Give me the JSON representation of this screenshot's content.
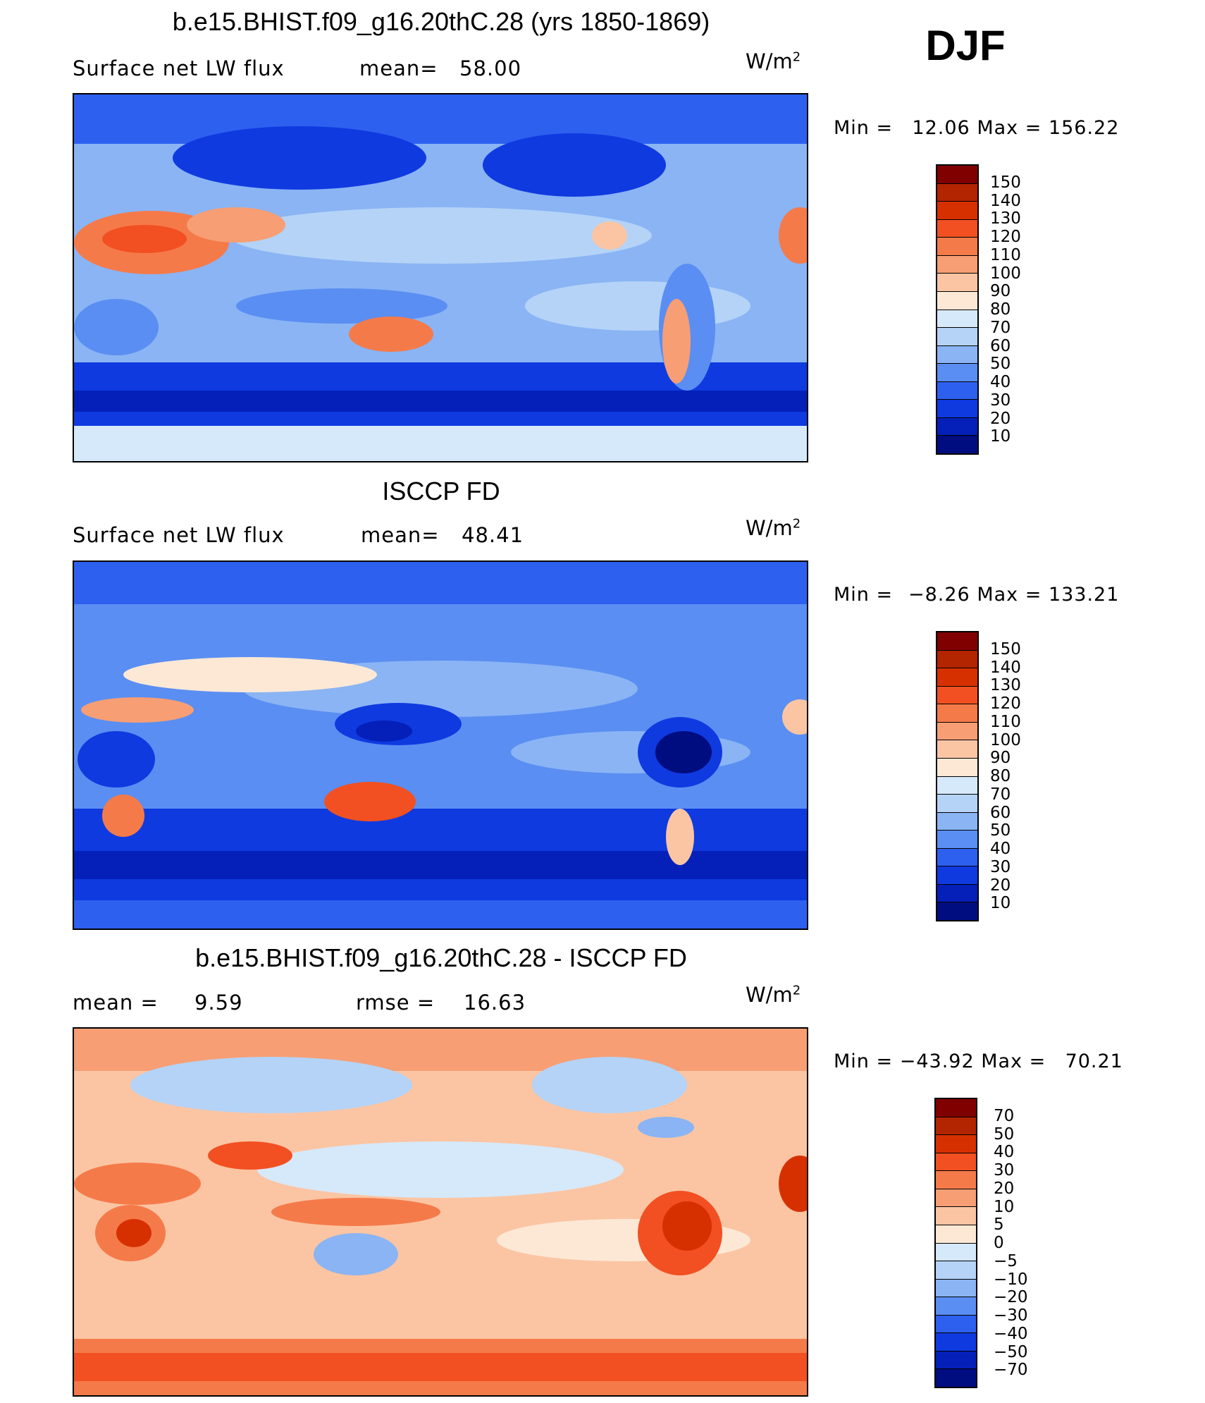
{
  "season": "DJF",
  "panels": [
    {
      "title": "b.e15.BHIST.f09_g16.20thC.28 (yrs 1850-1869)",
      "left_label": "Surface net LW flux",
      "mid_label": "mean=",
      "mid_value": "58.00",
      "units_base": "W/m",
      "units_exp": "2",
      "min_label": "Min =",
      "min_value": "12.06",
      "max_label": "Max =",
      "max_value": "156.22",
      "colorbar": {
        "labels": [
          "150",
          "140",
          "130",
          "120",
          "110",
          "100",
          "90",
          "80",
          "70",
          "60",
          "50",
          "40",
          "30",
          "20",
          "10"
        ],
        "colors": [
          "#800000",
          "#b32400",
          "#d73000",
          "#f25022",
          "#f57a4a",
          "#f79e74",
          "#fbc5a3",
          "#fde8d6",
          "#d6e9fb",
          "#b4d3f7",
          "#8ab4f4",
          "#5a8ef2",
          "#2e60f0",
          "#0f3ae0",
          "#0420b8",
          "#000d80"
        ]
      }
    },
    {
      "title": "ISCCP FD",
      "left_label": "Surface net LW flux",
      "mid_label": "mean=",
      "mid_value": "48.41",
      "units_base": "W/m",
      "units_exp": "2",
      "min_label": "Min =",
      "min_value": "−8.26",
      "max_label": "Max =",
      "max_value": "133.21",
      "colorbar": {
        "labels": [
          "150",
          "140",
          "130",
          "120",
          "110",
          "100",
          "90",
          "80",
          "70",
          "60",
          "50",
          "40",
          "30",
          "20",
          "10"
        ],
        "colors": [
          "#800000",
          "#b32400",
          "#d73000",
          "#f25022",
          "#f57a4a",
          "#f79e74",
          "#fbc5a3",
          "#fde8d6",
          "#d6e9fb",
          "#b4d3f7",
          "#8ab4f4",
          "#5a8ef2",
          "#2e60f0",
          "#0f3ae0",
          "#0420b8",
          "#000d80"
        ]
      }
    },
    {
      "title": "b.e15.BHIST.f09_g16.20thC.28 - ISCCP FD",
      "left_label": "mean =",
      "left_value": "9.59",
      "mid_label": "rmse =",
      "mid_value": "16.63",
      "units_base": "W/m",
      "units_exp": "2",
      "min_label": "Min =",
      "min_value": "−43.92",
      "max_label": "Max =",
      "max_value": "70.21",
      "colorbar": {
        "labels": [
          "70",
          "50",
          "40",
          "30",
          "20",
          "10",
          "5",
          "0",
          "−5",
          "−10",
          "−20",
          "−30",
          "−40",
          "−50",
          "−70"
        ],
        "colors": [
          "#800000",
          "#b32400",
          "#d73000",
          "#f25022",
          "#f57a4a",
          "#f79e74",
          "#fbc5a3",
          "#fde8d6",
          "#d6e9fb",
          "#b4d3f7",
          "#8ab4f4",
          "#5a8ef2",
          "#2e60f0",
          "#0f3ae0",
          "#0420b8",
          "#000d80"
        ]
      }
    }
  ]
}
